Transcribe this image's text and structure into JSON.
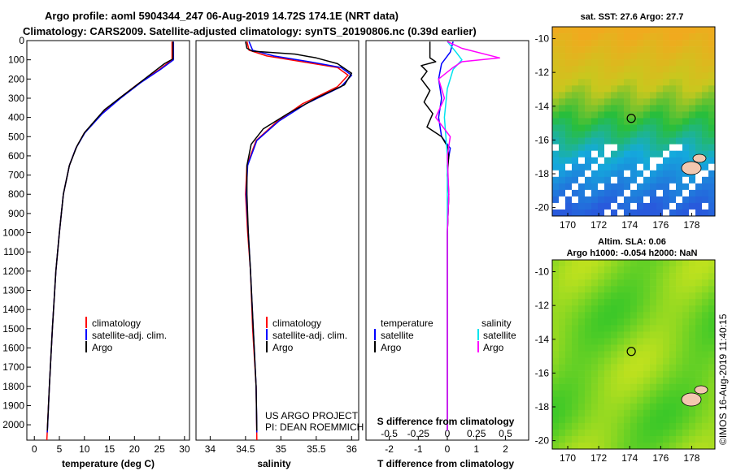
{
  "header": {
    "title1": "Argo profile: aoml 5904344_247 06-Aug-2019 14.72S 174.1E (NRT data)",
    "title2": "Climatology: CARS2009. Satellite-adjusted climatology: synTS_20190806.nc (0.39d earlier)"
  },
  "colors": {
    "argo": "#000000",
    "climatology": "#ff0000",
    "satellite": "#0000ff",
    "sal_satellite": "#00e5ee",
    "sal_argo": "#ff00ff"
  },
  "chart_data": [
    {
      "id": "temperature",
      "type": "line",
      "xlabel": "temperature (deg C)",
      "ylabel": "",
      "xlim": [
        -1.5,
        31
      ],
      "ylim": [
        2080,
        0
      ],
      "xticks": [
        "0",
        "5",
        "10",
        "15",
        "20",
        "25",
        "30"
      ],
      "yticks": [
        "0",
        "100",
        "200",
        "300",
        "400",
        "500",
        "600",
        "700",
        "800",
        "900",
        "1000",
        "1100",
        "1200",
        "1300",
        "1400",
        "1500",
        "1600",
        "1700",
        "1800",
        "1900",
        "2000"
      ],
      "legend": [
        "climatology",
        "satellite-adj. clim.",
        "Argo"
      ],
      "series": [
        {
          "name": "climatology",
          "color": "#ff0000",
          "points": [
            [
              27.5,
              5
            ],
            [
              27.5,
              100
            ],
            [
              25,
              150
            ],
            [
              21,
              220
            ],
            [
              17,
              300
            ],
            [
              13.5,
              380
            ],
            [
              10,
              480
            ],
            [
              8.3,
              560
            ],
            [
              7,
              650
            ],
            [
              5.8,
              800
            ],
            [
              5,
              1000
            ],
            [
              4.3,
              1200
            ],
            [
              3.6,
              1500
            ],
            [
              3,
              1800
            ],
            [
              2.5,
              2080
            ]
          ]
        },
        {
          "name": "satellite-adj. clim.",
          "color": "#0000ff",
          "points": [
            [
              27.8,
              5
            ],
            [
              27.8,
              100
            ],
            [
              25.2,
              150
            ],
            [
              21.2,
              220
            ],
            [
              17.2,
              300
            ],
            [
              13.6,
              380
            ],
            [
              10.1,
              480
            ],
            [
              8.3,
              560
            ],
            [
              7,
              650
            ],
            [
              5.8,
              800
            ],
            [
              5,
              1000
            ],
            [
              4.3,
              1200
            ],
            [
              3.6,
              1500
            ],
            [
              3,
              1800
            ],
            [
              2.6,
              2040
            ]
          ]
        },
        {
          "name": "Argo",
          "color": "#000000",
          "points": [
            [
              27.7,
              5
            ],
            [
              27.7,
              95
            ],
            [
              26,
              120
            ],
            [
              24,
              160
            ],
            [
              22,
              200
            ],
            [
              20,
              240
            ],
            [
              17,
              300
            ],
            [
              14,
              360
            ],
            [
              12,
              420
            ],
            [
              10,
              480
            ],
            [
              8.5,
              550
            ],
            [
              7,
              650
            ],
            [
              5.8,
              800
            ],
            [
              5,
              1000
            ],
            [
              4.3,
              1200
            ],
            [
              3.6,
              1500
            ],
            [
              3,
              1800
            ],
            [
              2.6,
              2030
            ]
          ]
        }
      ]
    },
    {
      "id": "salinity",
      "type": "line",
      "xlabel": "salinity",
      "ylabel": "",
      "xlim": [
        33.8,
        36.1
      ],
      "ylim": [
        2080,
        0
      ],
      "xticks": [
        "34",
        "34.5",
        "35",
        "35.5",
        "36"
      ],
      "legend": [
        "climatology",
        "satellite-adj. clim.",
        "Argo"
      ],
      "annotation": [
        "US ARGO PROJECT",
        "PI: DEAN ROEMMICH"
      ],
      "series": [
        {
          "name": "climatology",
          "color": "#ff0000",
          "points": [
            [
              34.52,
              5
            ],
            [
              34.55,
              50
            ],
            [
              34.8,
              80
            ],
            [
              35.3,
              110
            ],
            [
              35.8,
              140
            ],
            [
              35.95,
              180
            ],
            [
              35.8,
              240
            ],
            [
              35.3,
              330
            ],
            [
              34.95,
              420
            ],
            [
              34.65,
              520
            ],
            [
              34.52,
              650
            ],
            [
              34.5,
              800
            ],
            [
              34.53,
              1000
            ],
            [
              34.57,
              1200
            ],
            [
              34.6,
              1500
            ],
            [
              34.65,
              1800
            ],
            [
              34.66,
              2080
            ]
          ]
        },
        {
          "name": "satellite-adj. clim.",
          "color": "#0000ff",
          "points": [
            [
              34.55,
              5
            ],
            [
              34.6,
              50
            ],
            [
              34.9,
              80
            ],
            [
              35.4,
              110
            ],
            [
              35.85,
              140
            ],
            [
              36.0,
              180
            ],
            [
              35.85,
              240
            ],
            [
              35.35,
              330
            ],
            [
              34.97,
              420
            ],
            [
              34.66,
              520
            ],
            [
              34.53,
              650
            ],
            [
              34.51,
              800
            ],
            [
              34.54,
              1000
            ],
            [
              34.57,
              1200
            ],
            [
              34.61,
              1500
            ],
            [
              34.65,
              1800
            ],
            [
              34.66,
              2040
            ]
          ]
        },
        {
          "name": "Argo",
          "color": "#000000",
          "points": [
            [
              34.5,
              5
            ],
            [
              34.52,
              40
            ],
            [
              34.6,
              55
            ],
            [
              35.2,
              70
            ],
            [
              35.5,
              90
            ],
            [
              35.8,
              120
            ],
            [
              36.0,
              170
            ],
            [
              35.9,
              230
            ],
            [
              35.5,
              300
            ],
            [
              35.1,
              380
            ],
            [
              34.75,
              460
            ],
            [
              34.58,
              540
            ],
            [
              34.52,
              650
            ],
            [
              34.52,
              800
            ],
            [
              34.54,
              1000
            ],
            [
              34.57,
              1200
            ],
            [
              34.61,
              1500
            ],
            [
              34.65,
              1800
            ],
            [
              34.66,
              2030
            ]
          ]
        }
      ]
    },
    {
      "id": "difference",
      "type": "line",
      "xlabel": "T difference from climatology",
      "xlabel2": "S difference from climatology",
      "ylabel": "",
      "xlim": [
        -2.8,
        2.8
      ],
      "ylim": [
        2080,
        0
      ],
      "xticks": [
        "-2",
        "-1",
        "0",
        "1",
        "2"
      ],
      "xticks2": [
        "-0.5",
        "-0.25",
        "0",
        "0.25",
        "0.5"
      ],
      "legend_left_title": "temperature",
      "legend_right_title": "salinity",
      "legend_left": [
        "satellite",
        "Argo"
      ],
      "legend_right": [
        "satellite",
        "Argo"
      ],
      "series": [
        {
          "name": "T satellite",
          "color": "#0000ff",
          "points": [
            [
              0.2,
              5
            ],
            [
              0.1,
              60
            ],
            [
              -0.2,
              120
            ],
            [
              -0.3,
              200
            ],
            [
              -0.2,
              300
            ],
            [
              -0.3,
              400
            ],
            [
              -0.2,
              500
            ],
            [
              0.1,
              560
            ],
            [
              0.0,
              650
            ],
            [
              0.05,
              800
            ],
            [
              0.0,
              1000
            ],
            [
              0.0,
              1500
            ],
            [
              0.0,
              2030
            ]
          ]
        },
        {
          "name": "T Argo",
          "color": "#000000",
          "points": [
            [
              -0.6,
              5
            ],
            [
              -0.6,
              90
            ],
            [
              -0.4,
              110
            ],
            [
              -0.9,
              130
            ],
            [
              -0.7,
              160
            ],
            [
              -0.9,
              200
            ],
            [
              -0.6,
              260
            ],
            [
              -0.8,
              320
            ],
            [
              -0.5,
              380
            ],
            [
              -0.7,
              450
            ],
            [
              -0.2,
              500
            ],
            [
              0.0,
              550
            ],
            [
              0.05,
              600
            ],
            [
              0.0,
              700
            ],
            [
              0.05,
              800
            ],
            [
              0.0,
              1000
            ],
            [
              0.0,
              1500
            ],
            [
              0.0,
              2030
            ]
          ]
        },
        {
          "name": "S satellite",
          "color": "#00e5ee",
          "points": [
            [
              0.0,
              5
            ],
            [
              0.3,
              60
            ],
            [
              0.5,
              100
            ],
            [
              0.2,
              150
            ],
            [
              0.0,
              250
            ],
            [
              -0.1,
              400
            ],
            [
              0.0,
              600
            ],
            [
              0.0,
              1000
            ],
            [
              0.0,
              1500
            ],
            [
              0.0,
              2030
            ]
          ]
        },
        {
          "name": "S Argo",
          "color": "#ff00ff",
          "points": [
            [
              0.0,
              5
            ],
            [
              0.5,
              40
            ],
            [
              1.8,
              90
            ],
            [
              0.5,
              110
            ],
            [
              0.2,
              140
            ],
            [
              -0.3,
              200
            ],
            [
              -0.1,
              300
            ],
            [
              -0.4,
              400
            ],
            [
              0.1,
              500
            ],
            [
              0.0,
              600
            ],
            [
              0.05,
              800
            ],
            [
              0.0,
              1000
            ],
            [
              0.0,
              1500
            ],
            [
              0.0,
              2030
            ]
          ]
        }
      ]
    },
    {
      "id": "sst-map",
      "type": "heatmap",
      "title": "sat. SST: 27.6 Argo: 27.7",
      "xticks": [
        "170",
        "172",
        "174",
        "176",
        "178"
      ],
      "yticks": [
        "-10",
        "-12",
        "-14",
        "-16",
        "-18",
        "-20"
      ],
      "xlim": [
        169,
        179.5
      ],
      "ylim": [
        -20.5,
        -9.3
      ],
      "marker": [
        174.1,
        -14.72
      ]
    },
    {
      "id": "sla-map",
      "type": "heatmap",
      "title": "Altim. SLA: 0.06",
      "subtitle": "Argo h1000: -0.054 h2000: NaN",
      "xticks": [
        "170",
        "172",
        "174",
        "176",
        "178"
      ],
      "yticks": [
        "-10",
        "-12",
        "-14",
        "-16",
        "-18",
        "-20"
      ],
      "xlim": [
        169,
        179.5
      ],
      "ylim": [
        -20.5,
        -9.3
      ],
      "marker": [
        174.1,
        -14.72
      ]
    }
  ],
  "footer": {
    "stamp": "©IMOS 16-Aug-2019 11:40:15"
  }
}
